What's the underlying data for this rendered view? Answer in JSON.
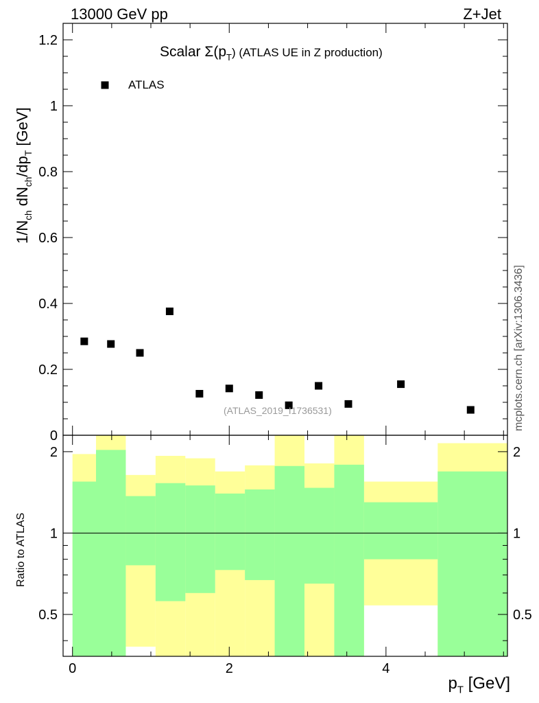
{
  "header": {
    "left": "13000 GeV pp",
    "right": "Z+Jet"
  },
  "side_label": "mcplots.cern.ch [arXiv:1306.3436]",
  "watermark": "(ATLAS_2019_I1736531)",
  "chart_data": [
    {
      "type": "scatter",
      "title": {
        "prefix": "Scalar ",
        "sigma": "Σ(p",
        "sub": "T",
        "suffix": ") (ATLAS UE in Z production)"
      },
      "ylabel": {
        "a": "1/N",
        "a_sub": "ch",
        "b": " dN",
        "b_sub": "ch",
        "c": "/dp",
        "c_sub": "T",
        "d": " [GeV]"
      },
      "xlabel": {
        "a": "p",
        "a_sub": "T",
        "b": " [GeV]"
      },
      "xlim": [
        -0.12,
        5.55
      ],
      "ylim": [
        0,
        1.25
      ],
      "yticks": [
        0,
        0.2,
        0.4,
        0.6,
        0.8,
        1,
        1.2
      ],
      "ytick_labels": [
        "0",
        "0.2",
        "0.4",
        "0.6",
        "0.8",
        "1",
        "1.2"
      ],
      "legend": {
        "position": "top-left",
        "entries": [
          "ATLAS"
        ]
      },
      "series": [
        {
          "name": "ATLAS",
          "x": [
            0.15,
            0.49,
            0.86,
            1.24,
            1.62,
            2.0,
            2.38,
            2.76,
            3.14,
            3.52,
            4.19,
            5.08
          ],
          "y": [
            0.285,
            0.277,
            0.25,
            0.376,
            0.126,
            0.142,
            0.122,
            0.091,
            0.15,
            0.095,
            0.155,
            0.077
          ]
        }
      ]
    },
    {
      "type": "area",
      "ylabel": "Ratio to ATLAS",
      "log_scale_y": true,
      "xlim": [
        -0.12,
        5.55
      ],
      "ylim": [
        0.35,
        2.3
      ],
      "xticks": [
        0,
        2,
        4
      ],
      "xtick_labels": [
        "0",
        "2",
        "4"
      ],
      "yticks": [
        0.5,
        1,
        2
      ],
      "ytick_labels": [
        "0.5",
        "1",
        "2"
      ],
      "reference_line": 1,
      "bin_edges": [
        0,
        0.3,
        0.68,
        1.06,
        1.44,
        1.82,
        2.2,
        2.58,
        2.96,
        3.34,
        3.72,
        4.66,
        5.55
      ],
      "bands": [
        {
          "color": "#ffff99",
          "lower": [
            0.53,
            0.33,
            0.38,
            0.32,
            0.32,
            0.32,
            0.32,
            0.32,
            0.32,
            0.32,
            0.54,
            0.32
          ],
          "upper": [
            1.96,
            2.4,
            1.64,
            1.93,
            1.89,
            1.69,
            1.78,
            2.35,
            1.81,
            2.35,
            1.55,
            2.15
          ]
        },
        {
          "color": "#99ff99",
          "lower": [
            0.33,
            0.33,
            0.76,
            0.56,
            0.6,
            0.73,
            0.67,
            0.33,
            0.65,
            0.33,
            0.8,
            0.33
          ],
          "upper": [
            1.55,
            2.03,
            1.37,
            1.53,
            1.5,
            1.4,
            1.45,
            1.77,
            1.47,
            1.79,
            1.3,
            1.69
          ]
        }
      ]
    }
  ]
}
